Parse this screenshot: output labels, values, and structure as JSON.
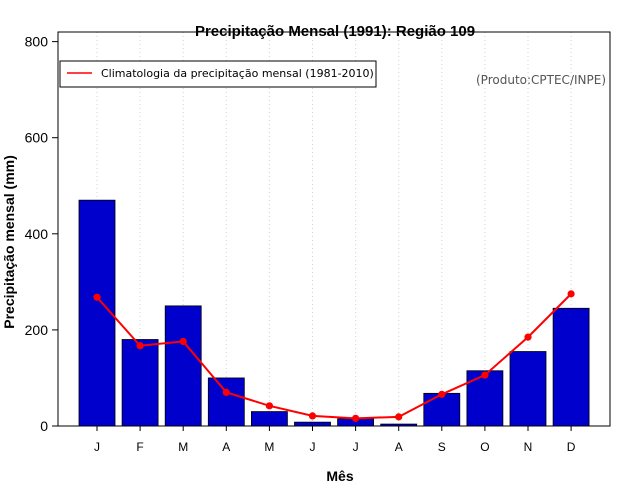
{
  "chart_data": {
    "type": "bar",
    "title": "Precipitação Mensal (1991): Região 109",
    "xlabel": "Mês",
    "ylabel": "Precipitação mensal (mm)",
    "ylim": [
      0,
      820
    ],
    "yticks": [
      0,
      200,
      400,
      600,
      800
    ],
    "categories": [
      "J",
      "F",
      "M",
      "A",
      "M",
      "J",
      "J",
      "A",
      "S",
      "O",
      "N",
      "D"
    ],
    "series": [
      {
        "name": "Precipitação mensal (1991)",
        "kind": "bar",
        "color": "#0000cd",
        "values": [
          470,
          180,
          250,
          100,
          30,
          8,
          15,
          4,
          68,
          115,
          155,
          245
        ]
      },
      {
        "name": "Climatologia da precipitação mensal (1981-2010)",
        "kind": "line",
        "color": "#ff0000",
        "values": [
          268,
          167,
          176,
          70,
          42,
          21,
          16,
          19,
          66,
          106,
          185,
          275
        ]
      }
    ],
    "legend": {
      "position": "top-left",
      "entries": [
        "Climatologia da precipitação mensal (1981-2010)"
      ]
    },
    "annotation": "(Produto:CPTEC/INPE)",
    "grid": {
      "x": true,
      "y": false
    }
  }
}
